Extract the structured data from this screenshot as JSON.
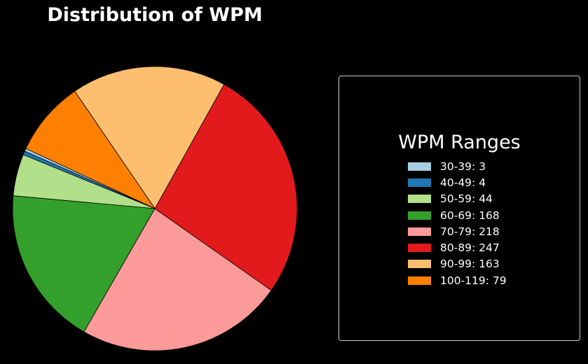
{
  "chart_data": {
    "type": "pie",
    "title": "Distribution of WPM",
    "legend_title": "WPM Ranges",
    "legend_placement": "right",
    "start_angle_deg": 155,
    "direction": "counterclockwise",
    "slices": [
      {
        "label": "30-39",
        "value": 3,
        "color": "#a6cee3",
        "legend_label": "30-39: 3"
      },
      {
        "label": "40-49",
        "value": 4,
        "color": "#1f78b4",
        "legend_label": "40-49: 4"
      },
      {
        "label": "50-59",
        "value": 44,
        "color": "#b2df8a",
        "legend_label": "50-59: 44"
      },
      {
        "label": "60-69",
        "value": 168,
        "color": "#33a02c",
        "legend_label": "60-69: 168"
      },
      {
        "label": "70-79",
        "value": 218,
        "color": "#fb9a99",
        "legend_label": "70-79: 218"
      },
      {
        "label": "80-89",
        "value": 247,
        "color": "#e31a1c",
        "legend_label": "80-89: 247"
      },
      {
        "label": "90-99",
        "value": 163,
        "color": "#fdbf6f",
        "legend_label": "90-99: 163"
      },
      {
        "label": "100-119",
        "value": 79,
        "color": "#ff7f00",
        "legend_label": "100-119: 79"
      }
    ]
  }
}
